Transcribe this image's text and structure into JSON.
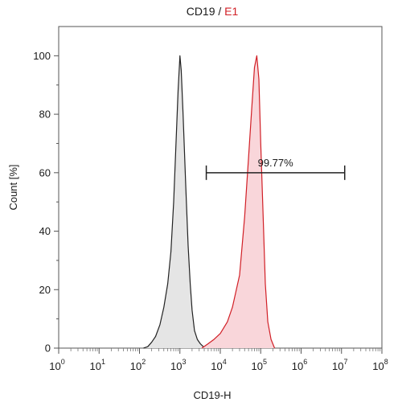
{
  "chart_data": {
    "type": "area",
    "title_parts": {
      "control": "CD19",
      "separator": " / ",
      "sample": "E1"
    },
    "xlabel": "CD19-H",
    "ylabel": "Count [%]",
    "x_scale": "log10",
    "xlim": [
      1,
      100000000
    ],
    "ylim": [
      0,
      110
    ],
    "yticks": [
      "0",
      "20",
      "40",
      "60",
      "80",
      "100"
    ],
    "xticks": [
      {
        "base": "10",
        "exp": "0"
      },
      {
        "base": "10",
        "exp": "1"
      },
      {
        "base": "10",
        "exp": "2"
      },
      {
        "base": "10",
        "exp": "3"
      },
      {
        "base": "10",
        "exp": "4"
      },
      {
        "base": "10",
        "exp": "5"
      },
      {
        "base": "10",
        "exp": "6"
      },
      {
        "base": "10",
        "exp": "7"
      },
      {
        "base": "10",
        "exp": "8"
      }
    ],
    "series": [
      {
        "role": "control",
        "line_color": "#222222",
        "fill_color": "#e5e5e5",
        "points": [
          [
            126,
            0
          ],
          [
            160,
            0.5
          ],
          [
            200,
            2
          ],
          [
            250,
            4
          ],
          [
            320,
            8
          ],
          [
            400,
            14
          ],
          [
            500,
            22
          ],
          [
            600,
            33
          ],
          [
            700,
            50
          ],
          [
            800,
            70
          ],
          [
            900,
            88
          ],
          [
            1000,
            100
          ],
          [
            1080,
            95
          ],
          [
            1200,
            80
          ],
          [
            1400,
            55
          ],
          [
            1600,
            35
          ],
          [
            1800,
            22
          ],
          [
            2000,
            13
          ],
          [
            2300,
            6
          ],
          [
            2700,
            3
          ],
          [
            3200,
            1.5
          ],
          [
            3800,
            0.5
          ],
          [
            4300,
            0
          ]
        ]
      },
      {
        "role": "sample",
        "line_color": "#d11f26",
        "fill_color": "#f9d6da",
        "points": [
          [
            3500,
            0
          ],
          [
            5000,
            1.5
          ],
          [
            7000,
            3
          ],
          [
            10000,
            5
          ],
          [
            15000,
            9
          ],
          [
            20000,
            14
          ],
          [
            30000,
            25
          ],
          [
            40000,
            45
          ],
          [
            50000,
            65
          ],
          [
            60000,
            82
          ],
          [
            70000,
            96
          ],
          [
            80000,
            100
          ],
          [
            90000,
            92
          ],
          [
            100000,
            70
          ],
          [
            115000,
            45
          ],
          [
            130000,
            22
          ],
          [
            150000,
            9
          ],
          [
            180000,
            3
          ],
          [
            220000,
            0
          ]
        ]
      }
    ],
    "gate": {
      "x_start": 4500,
      "x_end": 12000000,
      "y": 60,
      "label": "99.77%"
    }
  }
}
